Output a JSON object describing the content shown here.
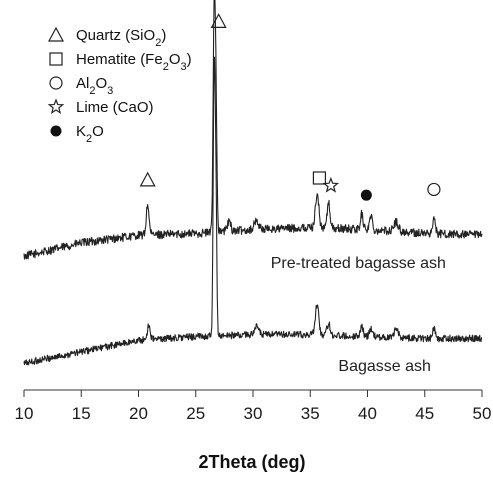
{
  "chart_data": {
    "type": "line",
    "xlabel": "2Theta (deg)",
    "xlim": [
      10,
      50
    ],
    "x_ticks": [
      10,
      15,
      20,
      25,
      30,
      35,
      40,
      45,
      50
    ],
    "ylim": [
      0,
      100
    ],
    "y_ticks_shown": false,
    "legend": {
      "placement": "top-left",
      "entries": [
        {
          "marker": "triangle",
          "parts": [
            {
              "t": "Quartz (SiO"
            },
            {
              "t": "2",
              "sub": true
            },
            {
              "t": ")"
            }
          ]
        },
        {
          "marker": "square",
          "parts": [
            {
              "t": "Hematite (Fe"
            },
            {
              "t": "2",
              "sub": true
            },
            {
              "t": "O"
            },
            {
              "t": "3",
              "sub": true
            },
            {
              "t": ")"
            }
          ]
        },
        {
          "marker": "circle-open",
          "parts": [
            {
              "t": "Al"
            },
            {
              "t": "2",
              "sub": true
            },
            {
              "t": "O"
            },
            {
              "t": "3",
              "sub": true
            }
          ]
        },
        {
          "marker": "star",
          "parts": [
            {
              "t": "Lime (CaO)"
            }
          ]
        },
        {
          "marker": "circle-filled",
          "parts": [
            {
              "t": "K"
            },
            {
              "t": "2",
              "sub": true
            },
            {
              "t": "O"
            }
          ]
        }
      ]
    },
    "series": [
      {
        "name": "Pre-treated bagasse ash",
        "label_position": [
          39.2,
          32
        ],
        "baseline": [
          [
            10,
            35
          ],
          [
            15,
            38.5
          ],
          [
            20,
            40.5
          ],
          [
            25,
            41
          ],
          [
            30,
            42
          ],
          [
            35,
            42.5
          ],
          [
            40,
            42
          ],
          [
            45,
            41
          ],
          [
            50,
            40.5
          ]
        ],
        "noise": 1.1,
        "peaks": [
          [
            20.8,
            8,
            0.12
          ],
          [
            26.6,
            52,
            0.09
          ],
          [
            26.75,
            36,
            0.09
          ],
          [
            27.9,
            2.5,
            0.15
          ],
          [
            30.3,
            2.2,
            0.2
          ],
          [
            35.6,
            9,
            0.15
          ],
          [
            36.6,
            6.5,
            0.13
          ],
          [
            39.5,
            4,
            0.12
          ],
          [
            40.3,
            3.5,
            0.13
          ],
          [
            42.5,
            2.5,
            0.2
          ],
          [
            45.8,
            4,
            0.12
          ]
        ],
        "markers": [
          {
            "type": "triangle",
            "x": 20.8,
            "y": 55
          },
          {
            "type": "triangle",
            "x": 27.0,
            "y": 96.5
          },
          {
            "type": "square",
            "x": 35.8,
            "y": 55.5
          },
          {
            "type": "star",
            "x": 36.8,
            "y": 53.5
          },
          {
            "type": "circle-filled",
            "x": 39.9,
            "y": 51
          },
          {
            "type": "circle-open",
            "x": 45.8,
            "y": 52.5
          }
        ]
      },
      {
        "name": "Bagasse ash",
        "label_position": [
          41.5,
          5
        ],
        "baseline": [
          [
            10,
            7
          ],
          [
            15,
            10
          ],
          [
            20,
            13
          ],
          [
            25,
            14
          ],
          [
            30,
            14.5
          ],
          [
            35,
            14.5
          ],
          [
            40,
            14
          ],
          [
            45,
            13.5
          ],
          [
            50,
            13.5
          ]
        ],
        "noise": 0.9,
        "peaks": [
          [
            20.9,
            4,
            0.12
          ],
          [
            26.6,
            65,
            0.08
          ],
          [
            26.75,
            40,
            0.08
          ],
          [
            30.3,
            2,
            0.2
          ],
          [
            35.6,
            8,
            0.15
          ],
          [
            36.6,
            3,
            0.14
          ],
          [
            39.5,
            2.5,
            0.13
          ],
          [
            40.3,
            2,
            0.14
          ],
          [
            42.5,
            2,
            0.2
          ],
          [
            45.8,
            2.5,
            0.13
          ]
        ],
        "markers": []
      }
    ]
  }
}
